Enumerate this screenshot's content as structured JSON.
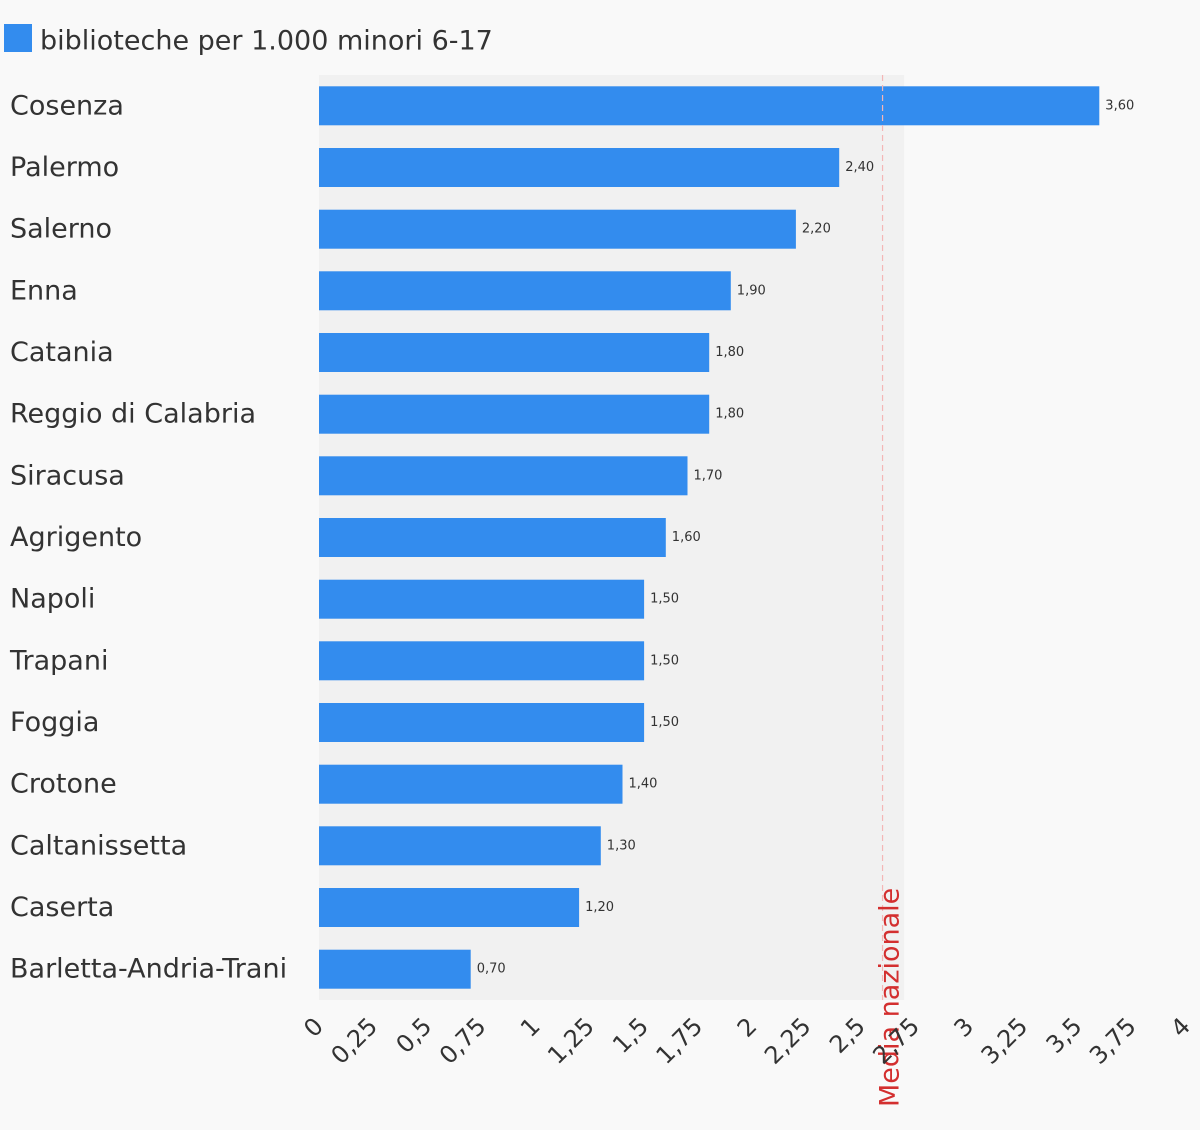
{
  "chart_data": {
    "type": "bar",
    "orientation": "horizontal",
    "legend_placement": "top-left",
    "grid": false,
    "series": [
      {
        "name": "biblioteche per 1.000 minori 6-17",
        "color": "#338cee",
        "values": [
          3.6,
          2.4,
          2.2,
          1.9,
          1.8,
          1.8,
          1.7,
          1.6,
          1.5,
          1.5,
          1.5,
          1.4,
          1.3,
          1.2,
          0.7
        ],
        "value_labels": [
          "3,60",
          "2,40",
          "2,20",
          "1,90",
          "1,80",
          "1,80",
          "1,70",
          "1,60",
          "1,50",
          "1,50",
          "1,50",
          "1,40",
          "1,30",
          "1,20",
          "0,70"
        ]
      }
    ],
    "categories": [
      "Cosenza",
      "Palermo",
      "Salerno",
      "Enna",
      "Catania",
      "Reggio di Calabria",
      "Siracusa",
      "Agrigento",
      "Napoli",
      "Trapani",
      "Foggia",
      "Crotone",
      "Caltanissetta",
      "Caserta",
      "Barletta-Andria-Trani"
    ],
    "xlim": [
      0,
      4
    ],
    "x_ticks": [
      0,
      0.25,
      0.5,
      0.75,
      1,
      1.25,
      1.5,
      1.75,
      2,
      2.25,
      2.5,
      2.75,
      3,
      3.25,
      3.5,
      3.75,
      4
    ],
    "x_tick_labels": [
      "0",
      "0,25",
      "0,5",
      "0,75",
      "1",
      "1,25",
      "1,5",
      "1,75",
      "2",
      "2,25",
      "2,5",
      "2,75",
      "3",
      "3,25",
      "3,5",
      "3,75",
      "4"
    ],
    "shaded_region": {
      "from": 0,
      "to": 2.7,
      "color": "#f1f1f1"
    },
    "reference_line": {
      "label": "Media nazionale",
      "value": 2.6,
      "color": "#d32f2f"
    }
  }
}
